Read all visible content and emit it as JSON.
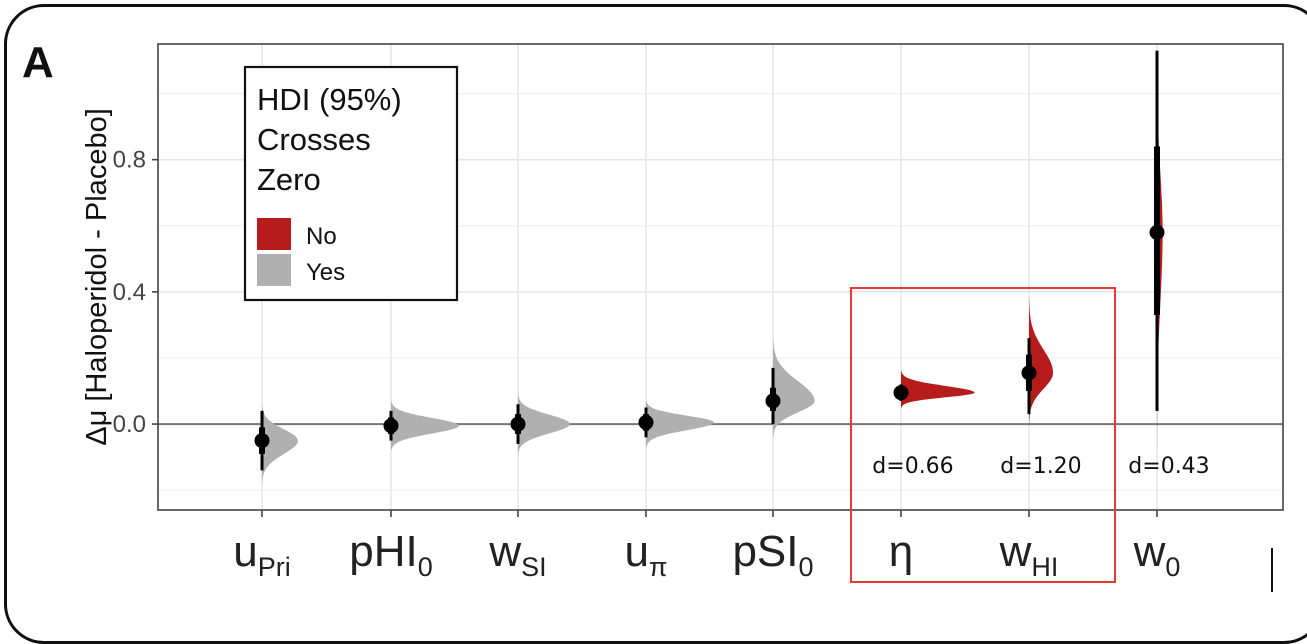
{
  "panel_label": "A",
  "chart_data": {
    "type": "violin-interval",
    "ylabel": "Δμ [Haloperidol - Placebo]",
    "ylim": [
      -0.26,
      1.15
    ],
    "yticks": [
      0.0,
      0.4,
      0.8
    ],
    "ytick_labels": [
      "0.0",
      "0.4",
      "0.8"
    ],
    "grid": true,
    "categories": [
      {
        "main": "u",
        "sub": "Pri",
        "sub_style": "subscript"
      },
      {
        "main": "pHI",
        "sub": "0",
        "sub_style": "subscript"
      },
      {
        "main": "w",
        "sub": "SI",
        "sub_style": "subscript"
      },
      {
        "main": "u",
        "sub": "π",
        "sub_style": "subscript"
      },
      {
        "main": "pSI",
        "sub": "0",
        "sub_style": "subscript"
      },
      {
        "main": "η",
        "sub": "",
        "sub_style": "subscript"
      },
      {
        "main": "w",
        "sub": "HI",
        "sub_style": "subscript"
      },
      {
        "main": "w",
        "sub": "0",
        "sub_style": "subscript"
      }
    ],
    "series": [
      {
        "median": -0.05,
        "inner": [
          -0.09,
          -0.01
        ],
        "outer": [
          -0.14,
          0.04
        ],
        "dist_range": [
          -0.18,
          0.06
        ],
        "width": 0.45,
        "crosses_zero": "Yes"
      },
      {
        "median": -0.005,
        "inner": [
          -0.03,
          0.02
        ],
        "outer": [
          -0.05,
          0.04
        ],
        "dist_range": [
          -0.08,
          0.07
        ],
        "width": 0.85,
        "crosses_zero": "Yes"
      },
      {
        "median": 0.0,
        "inner": [
          -0.03,
          0.03
        ],
        "outer": [
          -0.06,
          0.06
        ],
        "dist_range": [
          -0.09,
          0.09
        ],
        "width": 0.65,
        "crosses_zero": "Yes"
      },
      {
        "median": 0.005,
        "inner": [
          -0.02,
          0.03
        ],
        "outer": [
          -0.04,
          0.05
        ],
        "dist_range": [
          -0.07,
          0.07
        ],
        "width": 0.85,
        "crosses_zero": "Yes"
      },
      {
        "median": 0.07,
        "inner": [
          0.04,
          0.11
        ],
        "outer": [
          0.0,
          0.17
        ],
        "dist_range": [
          -0.04,
          0.26
        ],
        "width": 0.52,
        "crosses_zero": "Yes"
      },
      {
        "median": 0.095,
        "inner": [
          0.08,
          0.11
        ],
        "outer": [
          0.07,
          0.12
        ],
        "dist_range": [
          0.05,
          0.16
        ],
        "width": 0.92,
        "crosses_zero": "No"
      },
      {
        "median": 0.155,
        "inner": [
          0.1,
          0.21
        ],
        "outer": [
          0.03,
          0.26
        ],
        "dist_range": [
          0.0,
          0.38
        ],
        "width": 0.3,
        "crosses_zero": "No"
      },
      {
        "median": 0.58,
        "inner": [
          0.33,
          0.84
        ],
        "outer": [
          0.04,
          1.13
        ],
        "dist_range": [
          -0.1,
          1.15
        ],
        "width": 0.07,
        "crosses_zero": "No"
      }
    ],
    "colors": {
      "No": "#b71c1c",
      "Yes": "#b0b0b0"
    },
    "legend": {
      "title_lines": [
        "HDI (95%)",
        "Crosses",
        "Zero"
      ],
      "items": [
        {
          "label": "No",
          "color": "#b71c1c"
        },
        {
          "label": "Yes",
          "color": "#b0b0b0"
        }
      ],
      "placement": "top-left"
    },
    "annotations": [
      {
        "category_index": 5,
        "text": "d=0.66"
      },
      {
        "category_index": 6,
        "text": "d=1.20"
      },
      {
        "category_index": 7,
        "text": "d=0.43"
      }
    ],
    "highlight_box": {
      "from_category": 5,
      "to_category": 6,
      "color": "#e53935"
    }
  }
}
